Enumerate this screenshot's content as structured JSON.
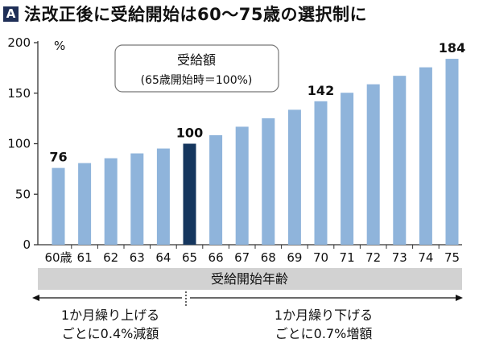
{
  "header": {
    "badge": "A",
    "title": "法改正後に受給開始は60〜75歳の選択制に"
  },
  "colors": {
    "bar": "#8fb4db",
    "bar_highlight": "#15365e",
    "axis": "#333333",
    "band": "#d2d2d2"
  },
  "chart_data": {
    "type": "bar",
    "title": "法改正後に受給開始は60〜75歳の選択制に",
    "xlabel": "受給開始年齢",
    "ylabel": "%",
    "categories": [
      "60歳",
      "61",
      "62",
      "63",
      "64",
      "65",
      "66",
      "67",
      "68",
      "69",
      "70",
      "71",
      "72",
      "73",
      "74",
      "75"
    ],
    "values": [
      76,
      80.8,
      85.6,
      90.4,
      95.2,
      100,
      108.4,
      116.8,
      125.2,
      133.6,
      142,
      150.4,
      158.8,
      167.2,
      175.6,
      184
    ],
    "highlight_index": 5,
    "labeled_values": [
      {
        "index": 0,
        "label": "76"
      },
      {
        "index": 5,
        "label": "100"
      },
      {
        "index": 10,
        "label": "142"
      },
      {
        "index": 15,
        "label": "184"
      }
    ],
    "ylim": [
      0,
      200
    ],
    "yticks": [
      0,
      50,
      100,
      150,
      200
    ],
    "legend": {
      "line1": "受給額",
      "line2": "(65歳開始時＝100%)"
    },
    "annotations": {
      "left_line1": "1か月繰り上げる",
      "left_line2": "ごとに0.4%減額",
      "right_line1": "1か月繰り下げる",
      "right_line2": "ごとに0.7%増額"
    },
    "grid": false
  }
}
